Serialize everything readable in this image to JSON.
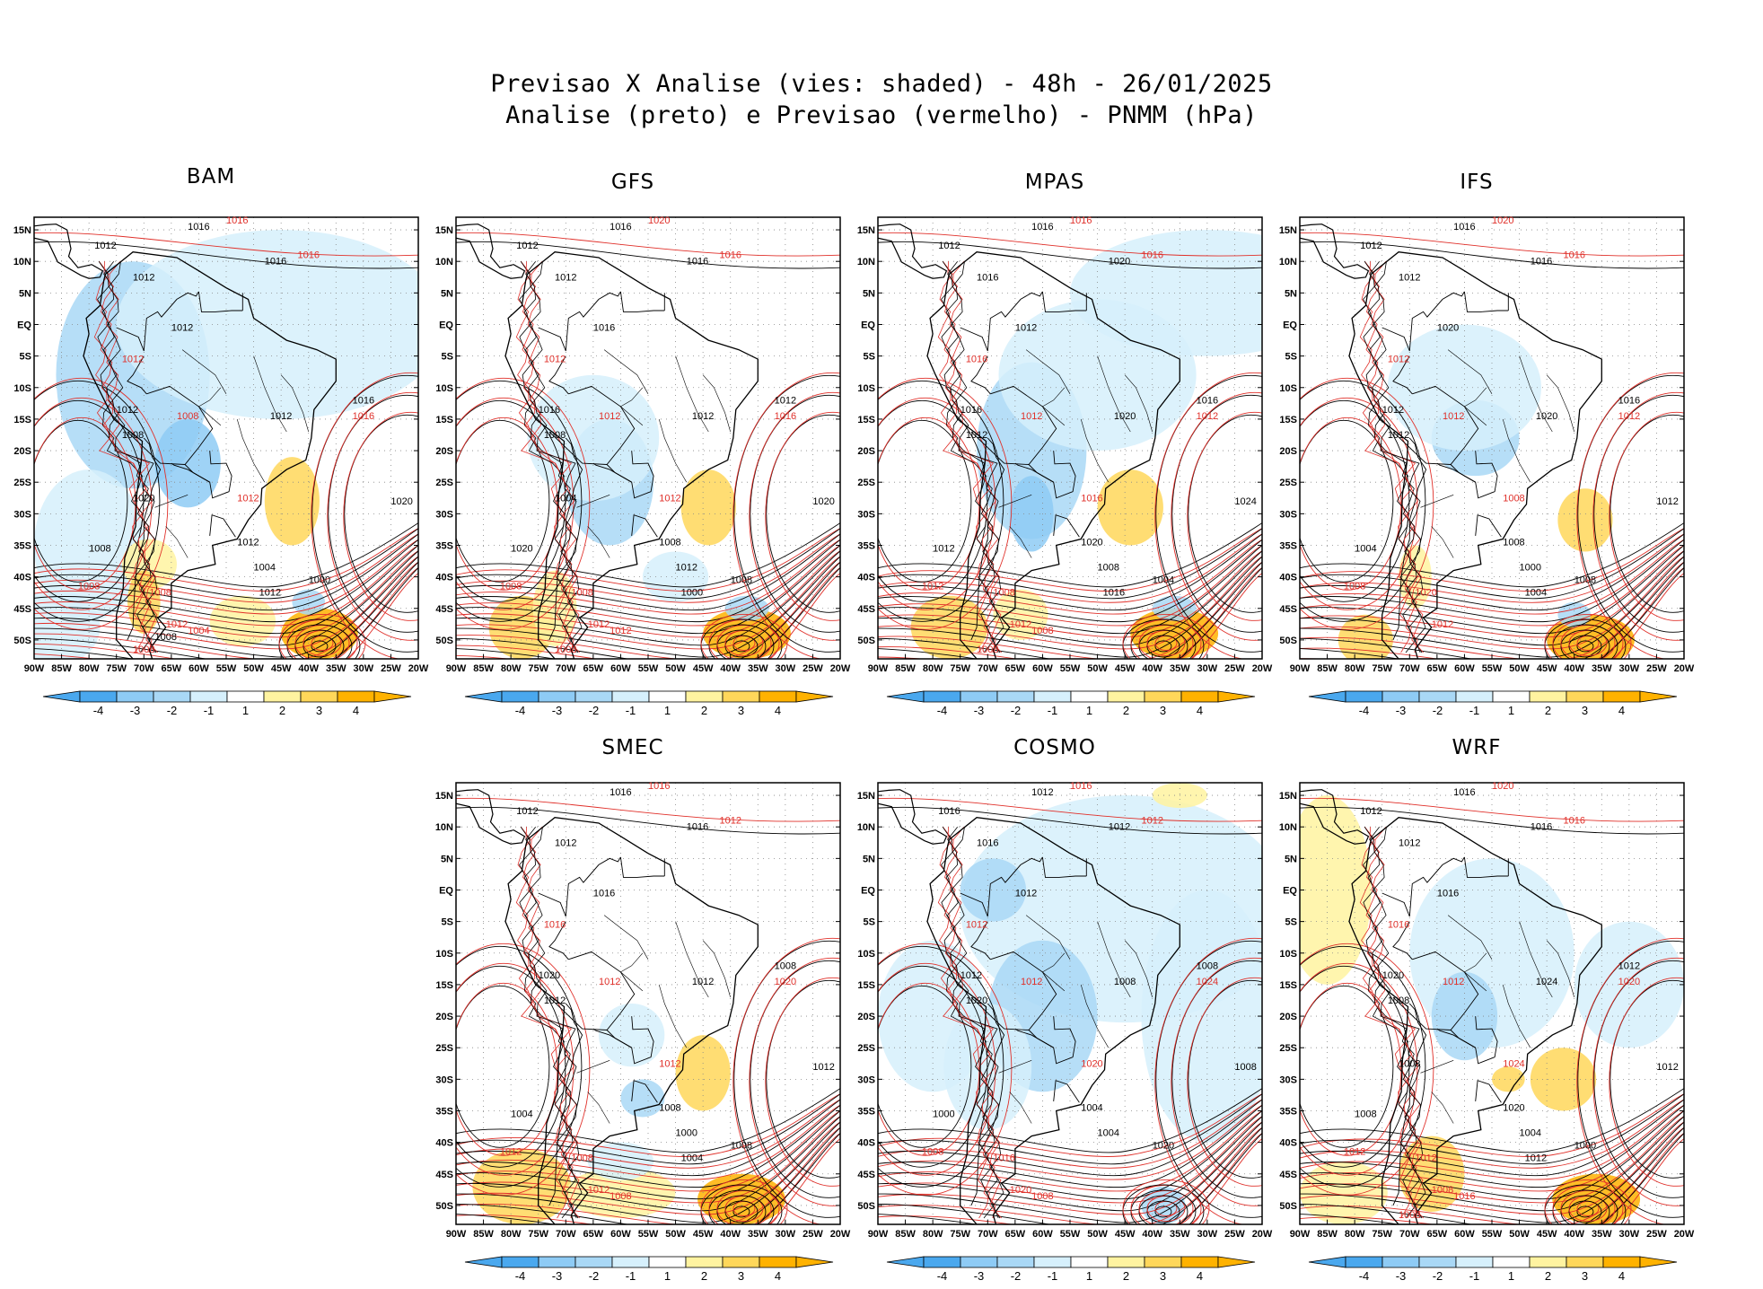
{
  "header": {
    "line1": "Previsao X Analise (vies: shaded) - 48h - 26/01/2025",
    "line2": "Analise (preto) e Previsao (vermelho) - PNMM (hPa)"
  },
  "colors": {
    "analysis": "#000000",
    "forecast": "#e0302a",
    "neg4": "#4aa8ee",
    "neg3": "#8ecbf5",
    "neg2": "#a9d8f6",
    "neg1": "#d6f0fc",
    "pos1": "#ffffff",
    "pos2": "#fff3a0",
    "pos3": "#ffd75a",
    "pos4": "#ffb200"
  },
  "axes": {
    "lat_ticks": [
      "15N",
      "10N",
      "5N",
      "EQ",
      "5S",
      "10S",
      "15S",
      "20S",
      "25S",
      "30S",
      "35S",
      "40S",
      "45S",
      "50S"
    ],
    "lon_ticks": [
      "90W",
      "85W",
      "80W",
      "75W",
      "70W",
      "65W",
      "60W",
      "55W",
      "50W",
      "45W",
      "40W",
      "35W",
      "30W",
      "25W",
      "20W"
    ]
  },
  "colorbar": {
    "labels": [
      "-4",
      "-3",
      "-2",
      "-1",
      "1",
      "2",
      "3",
      "4"
    ]
  },
  "chart_data": [
    {
      "type": "heatmap",
      "title": "BAM",
      "xlabel": "",
      "ylabel": "",
      "xlim": [
        -90,
        -20
      ],
      "ylim": [
        -53,
        17
      ],
      "contour_labels": {
        "analysis": [
          "1016",
          "1012",
          "1016",
          "1012",
          "1012",
          "1016",
          "1008",
          "1012",
          "1012",
          "1020",
          "1012",
          "1008",
          "1004",
          "1000",
          "1012",
          "1020",
          "1008"
        ],
        "forecast": [
          "1016",
          "1016",
          "1008",
          "1012",
          "1008",
          "1012",
          "1016",
          "1012",
          "1008",
          "1004",
          "1008"
        ]
      }
    },
    {
      "type": "heatmap",
      "title": "GFS",
      "xlabel": "",
      "ylabel": "",
      "xlim": [
        -90,
        -20
      ],
      "ylim": [
        -53,
        17
      ],
      "contour_labels": {
        "analysis": [
          "1016",
          "1012",
          "1016",
          "1012",
          "1016",
          "1012",
          "1008",
          "1016",
          "1012",
          "1020",
          "1008",
          "1020",
          "1012",
          "1008",
          "1000",
          "1004"
        ],
        "forecast": [
          "1020",
          "1016",
          "1012",
          "1012",
          "1008",
          "1012",
          "1016",
          "1012",
          "1008",
          "1012",
          "1008"
        ]
      }
    },
    {
      "type": "heatmap",
      "title": "MPAS",
      "xlabel": "",
      "ylabel": "",
      "xlim": [
        -90,
        -20
      ],
      "ylim": [
        -53,
        17
      ],
      "contour_labels": {
        "analysis": [
          "1016",
          "1012",
          "1020",
          "1016",
          "1012",
          "1016",
          "1012",
          "1016",
          "1020",
          "1024",
          "1020",
          "1012",
          "1008",
          "1004",
          "1016"
        ],
        "forecast": [
          "1016",
          "1016",
          "1012",
          "1016",
          "1008",
          "1012",
          "1012",
          "1016",
          "1012",
          "1008",
          "1008"
        ]
      }
    },
    {
      "type": "heatmap",
      "title": "IFS",
      "xlabel": "",
      "ylabel": "",
      "xlim": [
        -90,
        -20
      ],
      "ylim": [
        -53,
        17
      ],
      "contour_labels": {
        "analysis": [
          "1016",
          "1012",
          "1016",
          "1012",
          "1020",
          "1016",
          "1012",
          "1012",
          "1020",
          "1012",
          "1008",
          "1004",
          "1000",
          "1008",
          "1004"
        ],
        "forecast": [
          "1020",
          "1016",
          "1012",
          "1012",
          "1020",
          "1012",
          "1012",
          "1008",
          "1008"
        ]
      }
    },
    {
      "type": "heatmap",
      "title": "SMEC",
      "xlabel": "",
      "ylabel": "",
      "xlim": [
        -90,
        -20
      ],
      "ylim": [
        -53,
        17
      ],
      "contour_labels": {
        "analysis": [
          "1016",
          "1012",
          "1016",
          "1012",
          "1016",
          "1008",
          "1012",
          "1020",
          "1012",
          "1012",
          "1008",
          "1004",
          "1000",
          "1008",
          "1004"
        ],
        "forecast": [
          "1016",
          "1012",
          "1012",
          "1016",
          "1008",
          "1012",
          "1020",
          "1012",
          "1012",
          "1008"
        ]
      }
    },
    {
      "type": "heatmap",
      "title": "COSMO",
      "xlabel": "",
      "ylabel": "",
      "xlim": [
        -90,
        -20
      ],
      "ylim": [
        -53,
        17
      ],
      "contour_labels": {
        "analysis": [
          "1012",
          "1016",
          "1012",
          "1016",
          "1012",
          "1008",
          "1020",
          "1012",
          "1008",
          "1008",
          "1004",
          "1000",
          "1004",
          "1020"
        ],
        "forecast": [
          "1016",
          "1012",
          "1012",
          "1012",
          "1016",
          "1020",
          "1024",
          "1020",
          "1008",
          "1008"
        ]
      }
    },
    {
      "type": "heatmap",
      "title": "WRF",
      "xlabel": "",
      "ylabel": "",
      "xlim": [
        -90,
        -20
      ],
      "ylim": [
        -53,
        17
      ],
      "contour_labels": {
        "analysis": [
          "1016",
          "1012",
          "1016",
          "1012",
          "1016",
          "1012",
          "1008",
          "1020",
          "1024",
          "1012",
          "1020",
          "1008",
          "1004",
          "1000",
          "1012",
          "1008"
        ],
        "forecast": [
          "1020",
          "1016",
          "1012",
          "1016",
          "1012",
          "1008",
          "1020",
          "1024",
          "1012",
          "1016",
          "1008"
        ]
      }
    }
  ]
}
